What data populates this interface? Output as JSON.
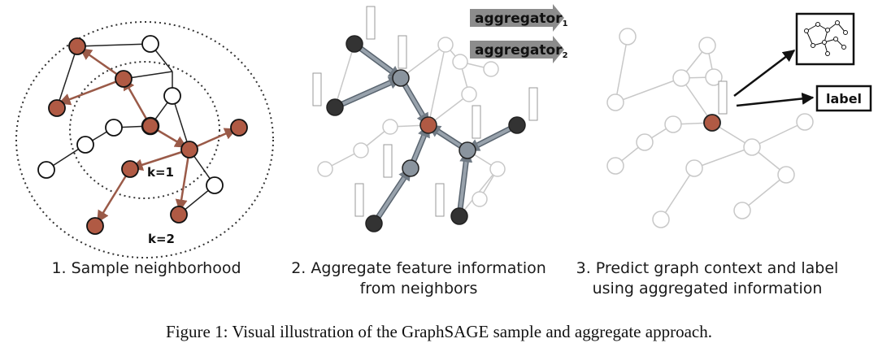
{
  "colors": {
    "sampled_node": "#b05a44",
    "sampled_edge": "#9a5a48",
    "aggregator_node": "#8a949e",
    "dark_node": "#333333",
    "faded": "#c8c8c8",
    "arrow_box": "#8c8c8c"
  },
  "panel1": {
    "label_k1": "k=1",
    "label_k2": "k=2",
    "caption": {
      "line1": "1. Sample neighborhood"
    }
  },
  "panel2": {
    "aggregator_1": {
      "main": "aggregator",
      "sub": "1"
    },
    "aggregator_2": {
      "main": "aggregator",
      "sub": "2"
    },
    "caption": {
      "line1": "2. Aggregate feature information",
      "line2": "from neighbors"
    }
  },
  "panel3": {
    "label_box": "label",
    "caption": {
      "line1": "3. Predict graph context and label",
      "line2": "using aggregated information"
    }
  },
  "figure_caption": "Figure 1: Visual illustration of the GraphSAGE sample and aggregate approach."
}
